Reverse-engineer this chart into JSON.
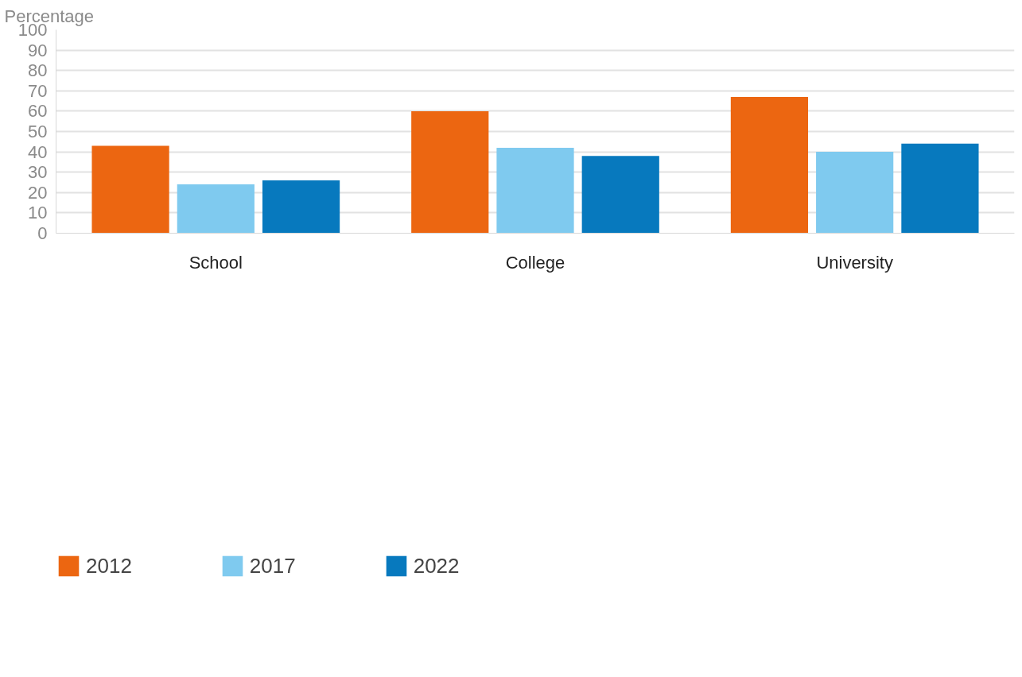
{
  "chart_data": {
    "type": "bar",
    "ylabel": "Percentage",
    "categories": [
      "School",
      "College",
      "University"
    ],
    "series": [
      {
        "name": "2012",
        "color": "#ec6611",
        "values": [
          43,
          60,
          67
        ]
      },
      {
        "name": "2017",
        "color": "#7fcaef",
        "values": [
          24,
          42,
          40
        ]
      },
      {
        "name": "2022",
        "color": "#0779be",
        "values": [
          26,
          38,
          44
        ]
      }
    ],
    "ylim": [
      0,
      100
    ],
    "yticks": [
      0,
      10,
      20,
      30,
      40,
      50,
      60,
      70,
      80,
      90,
      100
    ],
    "grid": "y",
    "legend": "bottom left"
  }
}
